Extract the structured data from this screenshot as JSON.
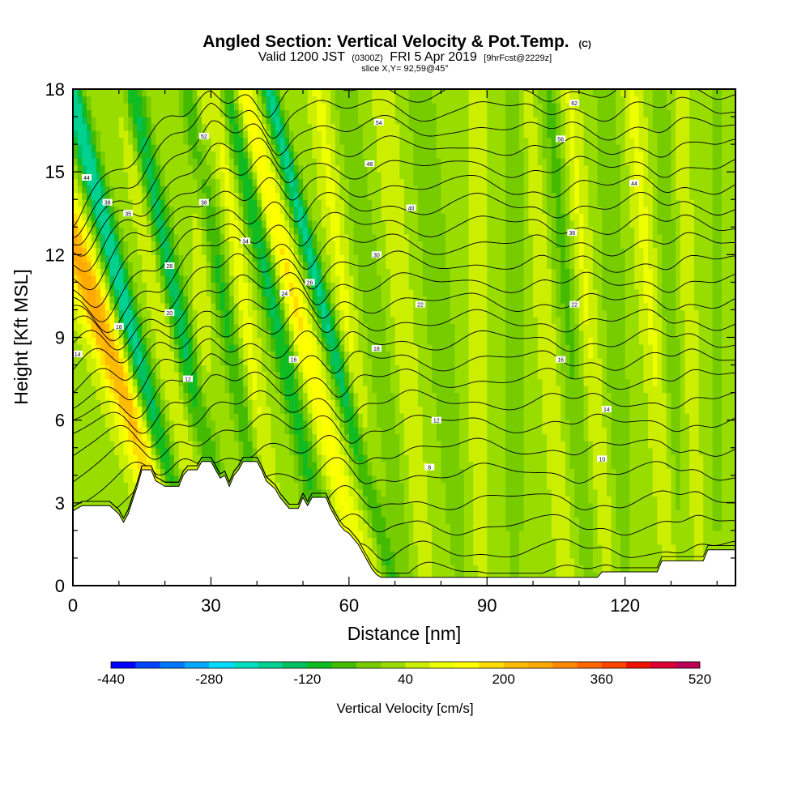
{
  "header": {
    "title": "Angled Section: Vertical Velocity & Pot.Temp.",
    "title_suffix": "(C)",
    "valid_prefix": "Valid 1200 JST",
    "valid_utc": "(0300Z)",
    "valid_date": "FRI 5 Apr 2019",
    "forecast": "[9hrFcst@2229z]",
    "slice": "slice X,Y= 92,59@45°"
  },
  "chart_data": {
    "type": "heatmap",
    "xlabel": "Distance [nm]",
    "ylabel": "Height [Kft MSL]",
    "xlim": [
      0,
      144
    ],
    "ylim": [
      0,
      18
    ],
    "x_ticks": [
      "0",
      "30",
      "60",
      "90",
      "120"
    ],
    "x_tick_values": [
      0,
      30,
      60,
      90,
      120
    ],
    "y_ticks": [
      "0",
      "3",
      "6",
      "9",
      "12",
      "15",
      "18"
    ],
    "y_tick_values": [
      0,
      3,
      6,
      9,
      12,
      15,
      18
    ],
    "colorbar": {
      "title": "Vertical Velocity [cm/s]",
      "min": -440,
      "max": 520,
      "step": 40,
      "labels": [
        "-440",
        "-280",
        "-120",
        "40",
        "200",
        "360",
        "520"
      ],
      "label_values": [
        -440,
        -280,
        -120,
        40,
        200,
        360,
        520
      ],
      "colors": [
        "#0000ff",
        "#0044ff",
        "#0077ff",
        "#00aaff",
        "#00ddff",
        "#00e0c0",
        "#00d090",
        "#00c060",
        "#11bb22",
        "#44bb00",
        "#77cc00",
        "#99dd00",
        "#ccee00",
        "#eeff00",
        "#ffff00",
        "#ffdd00",
        "#ffbb00",
        "#ffaa00",
        "#ff8800",
        "#ff6600",
        "#ff4400",
        "#ee1100",
        "#dd0033",
        "#bb0055",
        "#990077",
        "#6600aa"
      ]
    },
    "terrain_kft": [
      [
        0,
        2.7
      ],
      [
        2,
        2.9
      ],
      [
        8,
        2.9
      ],
      [
        10,
        2.6
      ],
      [
        11,
        2.3
      ],
      [
        12,
        2.6
      ],
      [
        13,
        3.1
      ],
      [
        14,
        3.6
      ],
      [
        15,
        4.2
      ],
      [
        17,
        4.2
      ],
      [
        18,
        3.8
      ],
      [
        20,
        3.6
      ],
      [
        23,
        3.6
      ],
      [
        24,
        4.0
      ],
      [
        25,
        4.2
      ],
      [
        27,
        4.2
      ],
      [
        28,
        4.5
      ],
      [
        30,
        4.5
      ],
      [
        31,
        4.2
      ],
      [
        32,
        3.9
      ],
      [
        33,
        4.0
      ],
      [
        34,
        3.6
      ],
      [
        35,
        4.0
      ],
      [
        36,
        4.2
      ],
      [
        37,
        4.5
      ],
      [
        40,
        4.5
      ],
      [
        41,
        4.2
      ],
      [
        42,
        3.8
      ],
      [
        44,
        3.5
      ],
      [
        45,
        3.2
      ],
      [
        46,
        3.0
      ],
      [
        47,
        2.8
      ],
      [
        49,
        2.8
      ],
      [
        50,
        3.2
      ],
      [
        51,
        2.9
      ],
      [
        52,
        3.2
      ],
      [
        55,
        3.2
      ],
      [
        56,
        2.8
      ],
      [
        57,
        2.5
      ],
      [
        58,
        2.2
      ],
      [
        59,
        2.0
      ],
      [
        60,
        1.9
      ],
      [
        61,
        1.7
      ],
      [
        62,
        1.5
      ],
      [
        63,
        1.2
      ],
      [
        64,
        0.9
      ],
      [
        65,
        0.6
      ],
      [
        66,
        0.4
      ],
      [
        67,
        0.3
      ],
      [
        80,
        0.3
      ],
      [
        95,
        0.3
      ],
      [
        105,
        0.3
      ],
      [
        114,
        0.3
      ],
      [
        115,
        0.5
      ],
      [
        127,
        0.5
      ],
      [
        128,
        0.9
      ],
      [
        137,
        0.9
      ],
      [
        138,
        1.3
      ],
      [
        144,
        1.3
      ]
    ],
    "updraft_bands": [
      {
        "x": 7,
        "slope": -4.0,
        "amp": 230,
        "width": 3.5
      },
      {
        "x": 20,
        "slope": -2.0,
        "amp": 60,
        "width": 2.0
      },
      {
        "x": 28,
        "slope": 0.0,
        "amp": 50,
        "width": 2.0
      },
      {
        "x": 38,
        "slope": -1.5,
        "amp": 70,
        "width": 2.0
      },
      {
        "x": 50,
        "slope": -3.0,
        "amp": 140,
        "width": 2.5
      },
      {
        "x": 60,
        "slope": -1.5,
        "amp": 60,
        "width": 2.0
      },
      {
        "x": 72,
        "slope": -1.0,
        "amp": 50,
        "width": 2.0
      },
      {
        "x": 88,
        "slope": 0.0,
        "amp": 40,
        "width": 2.0
      },
      {
        "x": 103,
        "slope": -1.0,
        "amp": 50,
        "width": 2.0
      },
      {
        "x": 112,
        "slope": -1.0,
        "amp": 60,
        "width": 2.0
      },
      {
        "x": 126,
        "slope": -1.0,
        "amp": 60,
        "width": 2.0
      },
      {
        "x": 134,
        "slope": -0.5,
        "amp": 40,
        "width": 1.5
      }
    ],
    "downdraft_bands": [
      {
        "x": 13,
        "slope": -3.0,
        "amp": -230,
        "width": 2.5
      },
      {
        "x": 24,
        "slope": -2.5,
        "amp": -170,
        "width": 2.5
      },
      {
        "x": 34,
        "slope": -2.0,
        "amp": -120,
        "width": 2.2
      },
      {
        "x": 45,
        "slope": -2.5,
        "amp": -160,
        "width": 2.5
      },
      {
        "x": 56,
        "slope": -3.0,
        "amp": -200,
        "width": 2.0
      },
      {
        "x": 66,
        "slope": -1.5,
        "amp": -70,
        "width": 2.5
      },
      {
        "x": 80,
        "slope": -1.0,
        "amp": -70,
        "width": 3.0
      },
      {
        "x": 96,
        "slope": 0.0,
        "amp": -60,
        "width": 3.0
      },
      {
        "x": 108,
        "slope": -1.0,
        "amp": -80,
        "width": 2.5
      },
      {
        "x": 118,
        "slope": -0.5,
        "amp": -70,
        "width": 2.5
      },
      {
        "x": 130,
        "slope": -0.5,
        "amp": -60,
        "width": 2.0
      },
      {
        "x": 140,
        "slope": 0.0,
        "amp": -50,
        "width": 2.0
      }
    ],
    "contour_start_kft": [
      0.6,
      1.4,
      2.3,
      3.2,
      4.2,
      5.1,
      6.0,
      6.8,
      7.6,
      8.3,
      9.0,
      9.7,
      10.4,
      11.1,
      11.8,
      12.5,
      13.2,
      13.9,
      14.6,
      15.3,
      16.0,
      16.7,
      17.4,
      18.1
    ],
    "contour_labels": [
      {
        "x": 1,
        "y": 8.4,
        "text": "14"
      },
      {
        "x": 3,
        "y": 14.8,
        "text": "44"
      },
      {
        "x": 7.5,
        "y": 13.9,
        "text": "38"
      },
      {
        "x": 10,
        "y": 9.4,
        "text": "18"
      },
      {
        "x": 12,
        "y": 13.5,
        "text": "35"
      },
      {
        "x": 21,
        "y": 11.6,
        "text": "28"
      },
      {
        "x": 21,
        "y": 9.9,
        "text": "20"
      },
      {
        "x": 25,
        "y": 7.5,
        "text": "12"
      },
      {
        "x": 28.5,
        "y": 13.9,
        "text": "38"
      },
      {
        "x": 28.5,
        "y": 16.3,
        "text": "52"
      },
      {
        "x": 37.5,
        "y": 12.5,
        "text": "34"
      },
      {
        "x": 46,
        "y": 10.6,
        "text": "24"
      },
      {
        "x": 48,
        "y": 8.2,
        "text": "16"
      },
      {
        "x": 51.5,
        "y": 11.0,
        "text": "26"
      },
      {
        "x": 64.5,
        "y": 15.3,
        "text": "48"
      },
      {
        "x": 66,
        "y": 12.0,
        "text": "30"
      },
      {
        "x": 66,
        "y": 8.6,
        "text": "18"
      },
      {
        "x": 66.5,
        "y": 16.8,
        "text": "54"
      },
      {
        "x": 73.5,
        "y": 13.7,
        "text": "40"
      },
      {
        "x": 75.5,
        "y": 10.2,
        "text": "22"
      },
      {
        "x": 77.5,
        "y": 4.3,
        "text": "8"
      },
      {
        "x": 79,
        "y": 6.0,
        "text": "12"
      },
      {
        "x": 106,
        "y": 16.2,
        "text": "56"
      },
      {
        "x": 106,
        "y": 8.2,
        "text": "16"
      },
      {
        "x": 108.5,
        "y": 12.8,
        "text": "36"
      },
      {
        "x": 109,
        "y": 10.2,
        "text": "22"
      },
      {
        "x": 109,
        "y": 17.5,
        "text": "62"
      },
      {
        "x": 115,
        "y": 4.6,
        "text": "10"
      },
      {
        "x": 116,
        "y": 6.4,
        "text": "14"
      },
      {
        "x": 122,
        "y": 14.6,
        "text": "44"
      }
    ]
  }
}
